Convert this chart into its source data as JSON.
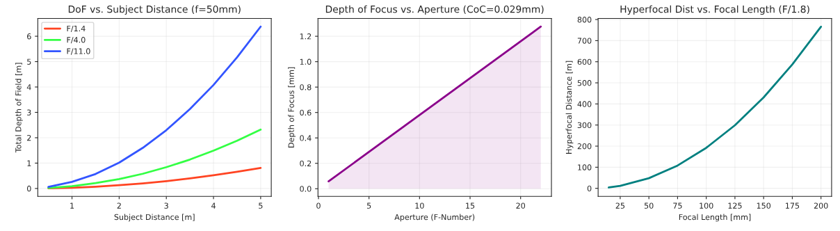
{
  "chart_data": [
    {
      "type": "line",
      "title": "DoF vs. Subject Distance (f=50mm)",
      "xlabel": "Subject Distance [m]",
      "ylabel": "Total Depth of Field [m]",
      "x": [
        0.5,
        1,
        1.5,
        2,
        2.5,
        3,
        3.5,
        4,
        4.5,
        5
      ],
      "series": [
        {
          "name": "F/1.4",
          "color": "#ff4422",
          "values": [
            0.01,
            0.03,
            0.07,
            0.13,
            0.2,
            0.29,
            0.4,
            0.52,
            0.66,
            0.81
          ]
        },
        {
          "name": "F/4.0",
          "color": "#33ff44",
          "values": [
            0.02,
            0.09,
            0.21,
            0.37,
            0.58,
            0.84,
            1.14,
            1.49,
            1.88,
            2.32
          ]
        },
        {
          "name": "F/11.0",
          "color": "#3355ff",
          "values": [
            0.06,
            0.26,
            0.57,
            1.02,
            1.6,
            2.3,
            3.13,
            4.08,
            5.17,
            6.38
          ]
        }
      ],
      "xlim": [
        0.275,
        5.225
      ],
      "ylim": [
        -0.31,
        6.7
      ],
      "xticks": [
        1,
        2,
        3,
        4,
        5
      ],
      "yticks": [
        0,
        1,
        2,
        3,
        4,
        5,
        6
      ],
      "grid": true,
      "legend": "top left"
    },
    {
      "type": "area",
      "title": "Depth of Focus vs. Aperture (CoC=0.029mm)",
      "xlabel": "Aperture (F-Number)",
      "ylabel": "Depth of Focus [mm]",
      "x": [
        1,
        22
      ],
      "series": [
        {
          "color": "#8b008b",
          "values": [
            0.058,
            1.276
          ]
        }
      ],
      "xlim": [
        -0.05,
        23.05
      ],
      "ylim": [
        -0.06,
        1.34
      ],
      "xticks": [
        0,
        5,
        10,
        15,
        20
      ],
      "yticks": [
        {
          "value": 0,
          "label": "0.0"
        },
        0.2,
        0.4,
        0.6,
        0.8,
        {
          "value": 1,
          "label": "1.0"
        },
        1.2
      ],
      "grid": true
    },
    {
      "type": "line",
      "title": "Hyperfocal Dist vs. Focal Length (F/1.8)",
      "xlabel": "Focal Length [mm]",
      "ylabel": "Hyperfocal Distance [m]",
      "x": [
        15,
        25,
        50,
        75,
        100,
        125,
        150,
        175,
        200
      ],
      "series": [
        {
          "color": "#008080",
          "values": [
            4,
            12,
            48,
            108,
            192,
            299,
            431,
            587,
            766
          ]
        }
      ],
      "xlim": [
        5.75,
        209.25
      ],
      "ylim": [
        -38,
        805
      ],
      "xticks": [
        25,
        50,
        75,
        100,
        125,
        150,
        175,
        200
      ],
      "yticks": [
        0,
        100,
        200,
        300,
        400,
        500,
        600,
        700,
        800
      ],
      "grid": true
    }
  ]
}
